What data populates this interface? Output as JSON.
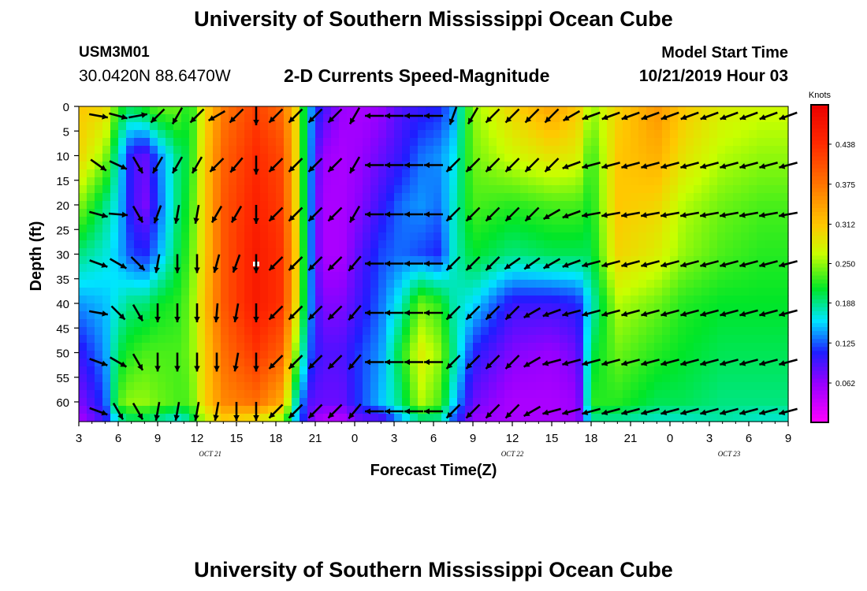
{
  "header": {
    "title": "University of Southern Mississippi Ocean Cube",
    "station_id": "USM3M01",
    "station_location": "30.0420N 88.6470W",
    "subtitle": "2-D Currents Speed-Magnitude",
    "model_label": "Model Start Time",
    "model_time": "10/21/2019 Hour 03"
  },
  "footer": {
    "title": "University of Southern Mississippi Ocean Cube"
  },
  "colors": {
    "arrow": "#000000",
    "marker": "#ffffff"
  },
  "chart_data": {
    "type": "heatmap",
    "title": "2-D Currents Speed-Magnitude",
    "xlabel": "Forecast Time(Z)",
    "ylabel": "Depth (ft)",
    "x_range_hours": [
      0,
      54
    ],
    "x_tick_labels": [
      "3",
      "6",
      "9",
      "12",
      "15",
      "18",
      "21",
      "0",
      "3",
      "6",
      "9",
      "12",
      "15",
      "18",
      "21",
      "0",
      "3",
      "6",
      "9"
    ],
    "date_labels": [
      {
        "label": "OCT 21",
        "x_hour": 10
      },
      {
        "label": "OCT 22",
        "x_hour": 33
      },
      {
        "label": "OCT 23",
        "x_hour": 49.5
      }
    ],
    "ylim": [
      0,
      64
    ],
    "y_ticks": [
      0,
      5,
      10,
      15,
      20,
      25,
      30,
      35,
      40,
      45,
      50,
      55,
      60
    ],
    "colorbar": {
      "label": "Knots",
      "min": 0,
      "max": 0.5,
      "ticks": [
        "0.438",
        "0.375",
        "0.312",
        "0.250",
        "0.188",
        "0.125",
        "0.062"
      ],
      "tick_values": [
        0.438,
        0.375,
        0.312,
        0.25,
        0.188,
        0.125,
        0.062
      ]
    },
    "speed_columns": [
      {
        "x": 0,
        "values": [
          0.31,
          0.3,
          0.25,
          0.19,
          0.14,
          0.1,
          0.07,
          0.05
        ]
      },
      {
        "x": 2,
        "values": [
          0.3,
          0.25,
          0.19,
          0.17,
          0.15,
          0.14,
          0.12,
          0.1
        ]
      },
      {
        "x": 3,
        "values": [
          0.22,
          0.17,
          0.16,
          0.15,
          0.17,
          0.2,
          0.23,
          0.17
        ]
      },
      {
        "x": 4,
        "values": [
          0.2,
          0.1,
          0.1,
          0.12,
          0.19,
          0.22,
          0.25,
          0.19
        ]
      },
      {
        "x": 5,
        "values": [
          0.22,
          0.08,
          0.07,
          0.11,
          0.19,
          0.23,
          0.25,
          0.19
        ]
      },
      {
        "x": 6,
        "values": [
          0.24,
          0.13,
          0.12,
          0.14,
          0.21,
          0.23,
          0.24,
          0.18
        ]
      },
      {
        "x": 7.5,
        "values": [
          0.24,
          0.19,
          0.19,
          0.2,
          0.22,
          0.23,
          0.23,
          0.16
        ]
      },
      {
        "x": 8.5,
        "values": [
          0.21,
          0.21,
          0.22,
          0.23,
          0.24,
          0.24,
          0.23,
          0.18
        ]
      },
      {
        "x": 9.5,
        "values": [
          0.29,
          0.3,
          0.3,
          0.3,
          0.31,
          0.3,
          0.3,
          0.26
        ]
      },
      {
        "x": 11,
        "values": [
          0.37,
          0.39,
          0.4,
          0.4,
          0.4,
          0.38,
          0.36,
          0.3
        ]
      },
      {
        "x": 13.5,
        "values": [
          0.42,
          0.44,
          0.45,
          0.46,
          0.46,
          0.43,
          0.38,
          0.28
        ]
      },
      {
        "x": 15.5,
        "values": [
          0.38,
          0.41,
          0.42,
          0.43,
          0.43,
          0.39,
          0.33,
          0.24
        ]
      },
      {
        "x": 16.5,
        "values": [
          0.3,
          0.3,
          0.3,
          0.31,
          0.3,
          0.25,
          0.18,
          0.15
        ]
      },
      {
        "x": 17.5,
        "values": [
          0.15,
          0.15,
          0.15,
          0.15,
          0.15,
          0.13,
          0.09,
          0.08
        ]
      },
      {
        "x": 18.5,
        "values": [
          0.1,
          0.06,
          0.05,
          0.05,
          0.07,
          0.09,
          0.08,
          0.04
        ]
      },
      {
        "x": 20,
        "values": [
          0.06,
          0.05,
          0.05,
          0.05,
          0.07,
          0.09,
          0.08,
          0.04
        ]
      },
      {
        "x": 21.5,
        "values": [
          0.05,
          0.06,
          0.07,
          0.09,
          0.1,
          0.12,
          0.12,
          0.08
        ]
      },
      {
        "x": 23,
        "values": [
          0.06,
          0.08,
          0.1,
          0.12,
          0.13,
          0.14,
          0.15,
          0.08
        ]
      },
      {
        "x": 24.5,
        "values": [
          0.09,
          0.1,
          0.13,
          0.13,
          0.17,
          0.21,
          0.19,
          0.14
        ]
      },
      {
        "x": 26,
        "values": [
          0.1,
          0.13,
          0.14,
          0.12,
          0.24,
          0.28,
          0.26,
          0.18
        ]
      },
      {
        "x": 27.5,
        "values": [
          0.11,
          0.14,
          0.13,
          0.11,
          0.22,
          0.25,
          0.23,
          0.18
        ]
      },
      {
        "x": 28.5,
        "values": [
          0.14,
          0.16,
          0.17,
          0.17,
          0.18,
          0.19,
          0.16,
          0.12
        ]
      },
      {
        "x": 30,
        "values": [
          0.25,
          0.24,
          0.23,
          0.21,
          0.16,
          0.11,
          0.08,
          0.06
        ]
      },
      {
        "x": 33,
        "values": [
          0.3,
          0.27,
          0.22,
          0.19,
          0.1,
          0.07,
          0.05,
          0.05
        ]
      },
      {
        "x": 36,
        "values": [
          0.34,
          0.29,
          0.23,
          0.2,
          0.1,
          0.06,
          0.05,
          0.05
        ]
      },
      {
        "x": 38,
        "values": [
          0.31,
          0.28,
          0.23,
          0.2,
          0.11,
          0.08,
          0.06,
          0.06
        ]
      },
      {
        "x": 39,
        "values": [
          0.25,
          0.22,
          0.21,
          0.2,
          0.17,
          0.2,
          0.22,
          0.18
        ]
      },
      {
        "x": 41,
        "values": [
          0.3,
          0.31,
          0.31,
          0.3,
          0.26,
          0.24,
          0.22,
          0.18
        ]
      },
      {
        "x": 44,
        "values": [
          0.35,
          0.33,
          0.3,
          0.28,
          0.24,
          0.22,
          0.2,
          0.17
        ]
      },
      {
        "x": 46,
        "values": [
          0.31,
          0.29,
          0.26,
          0.25,
          0.22,
          0.21,
          0.2,
          0.17
        ]
      },
      {
        "x": 49,
        "values": [
          0.28,
          0.26,
          0.24,
          0.23,
          0.21,
          0.2,
          0.19,
          0.18
        ]
      },
      {
        "x": 52,
        "values": [
          0.27,
          0.25,
          0.23,
          0.22,
          0.21,
          0.2,
          0.19,
          0.17
        ]
      },
      {
        "x": 54,
        "values": [
          0.27,
          0.25,
          0.23,
          0.22,
          0.21,
          0.2,
          0.19,
          0.17
        ]
      }
    ],
    "speed_depths": [
      0,
      10,
      20,
      30,
      40,
      50,
      60,
      64
    ],
    "vector_x_hours": [
      1.5,
      3,
      4.5,
      6,
      7.5,
      9,
      10.5,
      12,
      13.5,
      15,
      16.5,
      18,
      19.5,
      21,
      22.5,
      24,
      25.5,
      27,
      28.5,
      30,
      31.5,
      33,
      34.5,
      36,
      37.5,
      39,
      40.5,
      42,
      43.5,
      45,
      46.5,
      48,
      49.5,
      51,
      52.5,
      54
    ],
    "vector_depths": [
      0,
      10,
      20,
      30,
      40,
      50,
      60
    ],
    "vector_direction_columns": [
      [
        -10,
        -35,
        -15,
        -20,
        -10,
        -20,
        -20
      ],
      [
        -15,
        -25,
        -5,
        -30,
        -45,
        -30,
        -60
      ],
      [
        10,
        -60,
        -60,
        -45,
        -60,
        -60,
        -60
      ],
      [
        -135,
        -120,
        -110,
        -100,
        -90,
        -90,
        -100
      ],
      [
        -120,
        -120,
        -100,
        -90,
        -90,
        -90,
        -100
      ],
      [
        -135,
        -120,
        -100,
        -90,
        -90,
        -90,
        -100
      ],
      [
        -150,
        -135,
        -120,
        -105,
        -95,
        -90,
        -100
      ],
      [
        -135,
        -130,
        -120,
        -110,
        -100,
        -100,
        -90
      ],
      [
        -90,
        -90,
        -90,
        -90,
        -90,
        -90,
        -90
      ],
      [
        -135,
        -135,
        -135,
        -135,
        -135,
        -135,
        -135
      ],
      [
        -135,
        -135,
        -135,
        -135,
        -135,
        -135,
        -135
      ],
      [
        -135,
        -135,
        -135,
        -135,
        -135,
        -135,
        -135
      ],
      [
        -135,
        -135,
        -135,
        -135,
        -135,
        -135,
        -135
      ],
      [
        -120,
        -120,
        -120,
        -130,
        -130,
        -130,
        -130
      ],
      [
        -180,
        -180,
        -180,
        -180,
        -180,
        -180,
        -180
      ],
      [
        -180,
        -180,
        -180,
        -180,
        -180,
        -180,
        -180
      ],
      [
        -180,
        -180,
        -180,
        -180,
        -180,
        -180,
        -180
      ],
      [
        180,
        180,
        180,
        -180,
        -180,
        -180,
        -180
      ],
      [
        -110,
        -135,
        -135,
        -135,
        -135,
        -135,
        -135
      ],
      [
        -120,
        -135,
        -135,
        -135,
        -135,
        -135,
        -135
      ],
      [
        -135,
        -135,
        -135,
        -135,
        -135,
        -135,
        -135
      ],
      [
        -135,
        -135,
        -135,
        -145,
        -135,
        -135,
        -135
      ],
      [
        -135,
        -135,
        -135,
        -145,
        -150,
        -150,
        -150
      ],
      [
        -135,
        -135,
        -150,
        -150,
        -160,
        -165,
        -165
      ],
      [
        -150,
        -160,
        -160,
        -160,
        -165,
        -165,
        -165
      ],
      [
        -160,
        -165,
        -170,
        -165,
        -165,
        -165,
        -165
      ],
      [
        -160,
        -165,
        -170,
        -165,
        -165,
        -165,
        -165
      ],
      [
        -160,
        -165,
        -170,
        -165,
        -165,
        -165,
        -165
      ],
      [
        -160,
        -165,
        -170,
        -165,
        -165,
        -165,
        -165
      ],
      [
        -160,
        -165,
        -170,
        -165,
        -165,
        -165,
        -165
      ],
      [
        -160,
        -165,
        -170,
        -165,
        -165,
        -165,
        -165
      ],
      [
        -160,
        -165,
        -170,
        -165,
        -165,
        -165,
        -165
      ],
      [
        -160,
        -165,
        -170,
        -165,
        -165,
        -165,
        -165
      ],
      [
        -160,
        -165,
        -170,
        -165,
        -165,
        -165,
        -165
      ],
      [
        -160,
        -165,
        -170,
        -165,
        -165,
        -165,
        -165
      ],
      [
        -160,
        -165,
        -170,
        -165,
        -165,
        -165,
        -165
      ]
    ]
  }
}
